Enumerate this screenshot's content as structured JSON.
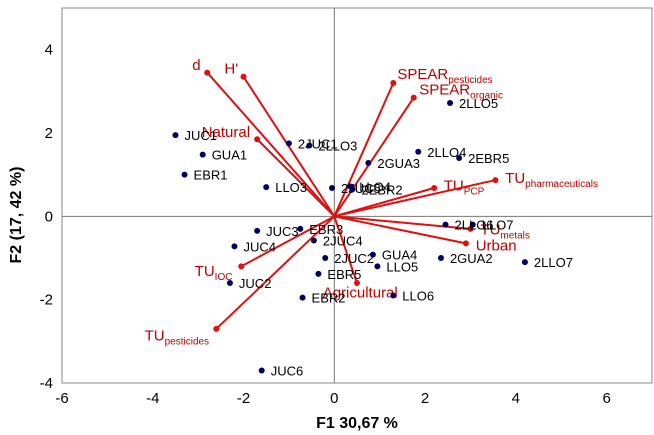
{
  "chart_data": {
    "type": "scatter",
    "xlabel": "F1 30,67 %",
    "ylabel": "F2 (17, 42 %)",
    "xlim": [
      -6,
      7
    ],
    "ylim": [
      -4,
      5
    ],
    "xticks": [
      "-6",
      "-4",
      "-2",
      "0",
      "2",
      "4",
      "6"
    ],
    "yticks": [
      "-4",
      "-2",
      "0",
      "2",
      "4"
    ],
    "xtick_values": [
      -6,
      -4,
      -2,
      0,
      2,
      4,
      6
    ],
    "ytick_values": [
      -4,
      -2,
      0,
      2,
      4
    ],
    "grid": false,
    "point_color": "#00005a",
    "vector_color": "#e01010",
    "label_color": "#c00000",
    "observations": [
      {
        "label": "JUC1",
        "x": -3.5,
        "y": 1.95
      },
      {
        "label": "GUA1",
        "x": -2.9,
        "y": 1.48
      },
      {
        "label": "EBR1",
        "x": -3.3,
        "y": 1.0
      },
      {
        "label": "2JUC1",
        "x": -1.0,
        "y": 1.75
      },
      {
        "label": "2LLO3",
        "x": -0.55,
        "y": 1.7
      },
      {
        "label": "LLO3",
        "x": -1.5,
        "y": 0.7
      },
      {
        "label": "2JUC5",
        "x": -0.05,
        "y": 0.68
      },
      {
        "label": "LLO4",
        "x": 0.35,
        "y": 0.72
      },
      {
        "label": "2EBR2",
        "x": 0.4,
        "y": 0.65
      },
      {
        "label": "2GUA3",
        "x": 0.75,
        "y": 1.28
      },
      {
        "label": "2LLO5",
        "x": 2.55,
        "y": 2.72
      },
      {
        "label": "2LLO4",
        "x": 1.85,
        "y": 1.55
      },
      {
        "label": "2EBR5",
        "x": 2.75,
        "y": 1.4
      },
      {
        "label": "LLO7",
        "x": 3.05,
        "y": -0.2
      },
      {
        "label": "2LLO6",
        "x": 2.45,
        "y": -0.2
      },
      {
        "label": "2LLO7",
        "x": 4.2,
        "y": -1.1
      },
      {
        "label": "JUC3",
        "x": -1.7,
        "y": -0.35
      },
      {
        "label": "EBR3",
        "x": -0.75,
        "y": -0.3
      },
      {
        "label": "JUC4",
        "x": -2.2,
        "y": -0.72
      },
      {
        "label": "2JUC4",
        "x": -0.45,
        "y": -0.58
      },
      {
        "label": "2JUC2",
        "x": -0.2,
        "y": -1.0
      },
      {
        "label": "EBR5",
        "x": -0.35,
        "y": -1.38
      },
      {
        "label": "GUA4",
        "x": 0.85,
        "y": -0.92
      },
      {
        "label": "LLO5",
        "x": 0.95,
        "y": -1.2
      },
      {
        "label": "2GUA2",
        "x": 2.35,
        "y": -1.0
      },
      {
        "label": "JUC2",
        "x": -2.3,
        "y": -1.6
      },
      {
        "label": "EBR2",
        "x": -0.7,
        "y": -1.95
      },
      {
        "label": "LLO6",
        "x": 1.3,
        "y": -1.9
      },
      {
        "label": "JUC6",
        "x": -1.6,
        "y": -3.7
      }
    ],
    "vectors": [
      {
        "label": "d",
        "sub": "",
        "x": -2.8,
        "y": 3.45
      },
      {
        "label": "H'",
        "sub": "",
        "x": -2.0,
        "y": 3.35
      },
      {
        "label": "Natural",
        "sub": "",
        "x": -1.7,
        "y": 1.85
      },
      {
        "label": "SPEAR",
        "sub": "pesticides",
        "x": 1.3,
        "y": 3.2
      },
      {
        "label": "SPEAR",
        "sub": "organic",
        "x": 1.75,
        "y": 2.85
      },
      {
        "label": "TU",
        "sub": "PCP",
        "x": 2.2,
        "y": 0.68
      },
      {
        "label": "TU",
        "sub": "pharmaceuticals",
        "x": 3.55,
        "y": 0.87
      },
      {
        "label": "TU",
        "sub": "metals",
        "x": 3.0,
        "y": -0.3
      },
      {
        "label": "Urban",
        "sub": "",
        "x": 2.9,
        "y": -0.65
      },
      {
        "label": "Agricultural",
        "sub": "",
        "x": 0.5,
        "y": -1.6
      },
      {
        "label": "TU",
        "sub": "IOC",
        "x": -2.05,
        "y": -1.2
      },
      {
        "label": "TU",
        "sub": "pesticides",
        "x": -2.6,
        "y": -2.7
      }
    ]
  }
}
